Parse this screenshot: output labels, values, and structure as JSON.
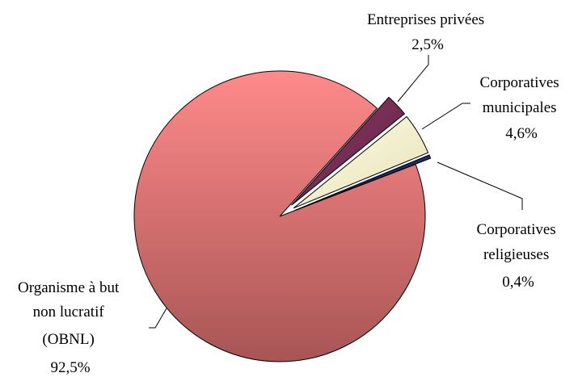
{
  "chart_data": {
    "type": "pie",
    "title": "",
    "slices": [
      {
        "name": "Entreprises privées",
        "value": 2.5,
        "label_lines": [
          "Entreprises privées",
          "2,5%"
        ],
        "color": "#7a2e55"
      },
      {
        "name": "Corporatives municipales",
        "value": 4.6,
        "label_lines": [
          "Corporatives",
          "municipales",
          "4,6%"
        ],
        "color": "#fbf9d9"
      },
      {
        "name": "Corporatives religieuses",
        "value": 0.4,
        "label_lines": [
          "Corporatives",
          "religieuses",
          "0,4%"
        ],
        "color": "#142a6a"
      },
      {
        "name": "Organisme à but non lucratif (OBNL)",
        "value": 92.5,
        "label_lines": [
          "Organisme à but",
          "non lucratif",
          "(OBNL)",
          "92,5%"
        ],
        "color": "#f17b7b"
      }
    ],
    "exploded": [
      "Entreprises privées",
      "Corporatives municipales",
      "Corporatives religieuses"
    ],
    "legend": "none",
    "labels": "outside-with-leader-lines",
    "effect": "3d-gradient"
  }
}
